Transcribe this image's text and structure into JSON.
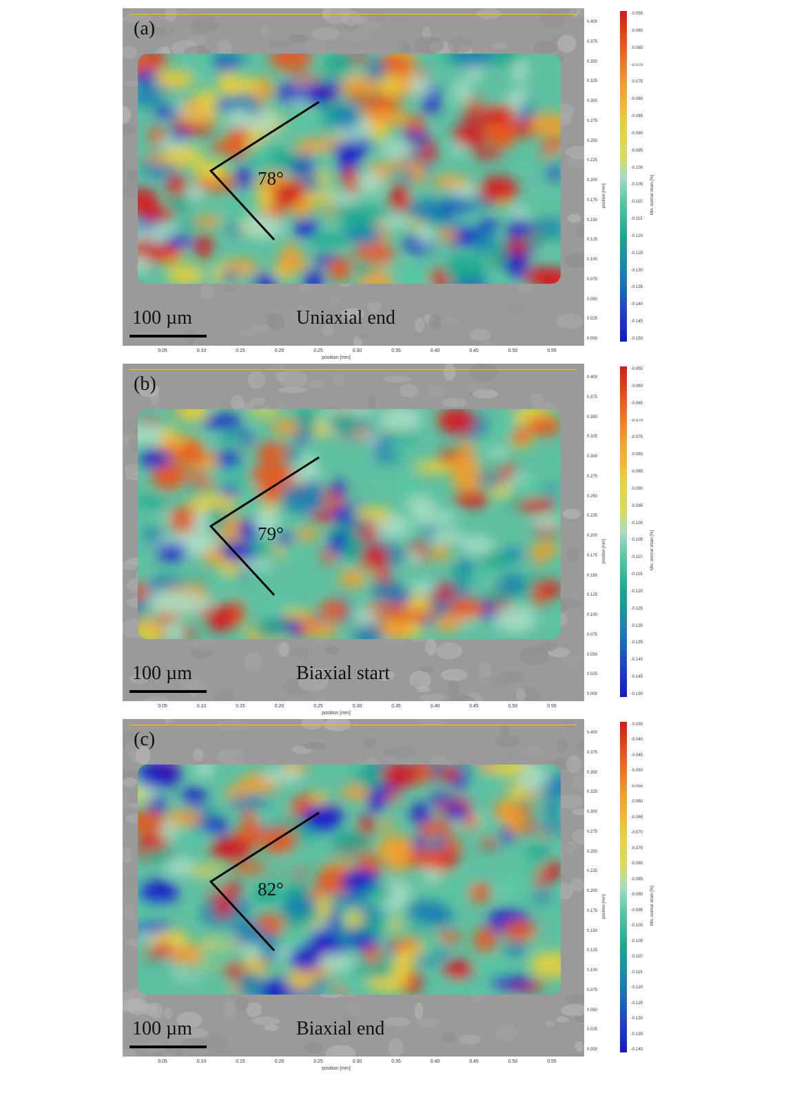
{
  "figure": {
    "panels": [
      {
        "label": "(a)",
        "stage": "Uniaxial end",
        "angle": "78°",
        "scale": "100 µm",
        "x_title": "position [mm]",
        "y_title": "position [mm]",
        "colorbar_title": "Min. normal strain [%]",
        "x_ticks": [
          "0.05",
          "0.10",
          "0.15",
          "0.20",
          "0.25",
          "0.30",
          "0.35",
          "0.40",
          "0.45",
          "0.50",
          "0.55"
        ],
        "y_ticks": [
          "0.400",
          "0.375",
          "0.350",
          "0.325",
          "0.300",
          "0.275",
          "0.250",
          "0.225",
          "0.200",
          "0.175",
          "0.150",
          "0.125",
          "0.100",
          "0.075",
          "0.050",
          "0.025",
          "0.000"
        ],
        "colorbar_ticks": [
          "-0.055",
          "-0.060",
          "-0.065",
          "-0.070",
          "-0.075",
          "-0.080",
          "-0.085",
          "-0.090",
          "-0.095",
          "-0.100",
          "-0.105",
          "-0.110",
          "-0.115",
          "-0.120",
          "-0.125",
          "-0.130",
          "-0.135",
          "-0.140",
          "-0.145",
          "-0.150"
        ]
      },
      {
        "label": "(b)",
        "stage": "Biaxial start",
        "angle": "79°",
        "scale": "100 µm",
        "x_title": "position [mm]",
        "y_title": "position [mm]",
        "colorbar_title": "Min. normal strain [%]",
        "x_ticks": [
          "0.05",
          "0.10",
          "0.15",
          "0.20",
          "0.25",
          "0.30",
          "0.35",
          "0.40",
          "0.45",
          "0.50",
          "0.55"
        ],
        "y_ticks": [
          "0.400",
          "0.375",
          "0.350",
          "0.325",
          "0.300",
          "0.275",
          "0.250",
          "0.225",
          "0.200",
          "0.175",
          "0.150",
          "0.125",
          "0.100",
          "0.075",
          "0.050",
          "0.025",
          "0.000"
        ],
        "colorbar_ticks": [
          "-0.055",
          "-0.060",
          "-0.065",
          "-0.070",
          "-0.075",
          "-0.080",
          "-0.085",
          "-0.090",
          "-0.095",
          "-0.100",
          "-0.105",
          "-0.110",
          "-0.115",
          "-0.120",
          "-0.125",
          "-0.130",
          "-0.135",
          "-0.140",
          "-0.145",
          "-0.150"
        ]
      },
      {
        "label": "(c)",
        "stage": "Biaxial end",
        "angle": "82°",
        "scale": "100 µm",
        "x_title": "position [mm]",
        "y_title": "position [mm]",
        "colorbar_title": "Min. normal strain [%]",
        "x_ticks": [
          "0.05",
          "0.10",
          "0.15",
          "0.20",
          "0.25",
          "0.30",
          "0.35",
          "0.40",
          "0.45",
          "0.50",
          "0.55"
        ],
        "y_ticks": [
          "0.400",
          "0.375",
          "0.350",
          "0.325",
          "0.300",
          "0.275",
          "0.250",
          "0.225",
          "0.200",
          "0.175",
          "0.150",
          "0.125",
          "0.100",
          "0.075",
          "0.050",
          "0.025",
          "0.000"
        ],
        "colorbar_ticks": [
          "-0.030",
          "-0.040",
          "-0.045",
          "-0.050",
          "-0.055",
          "-0.060",
          "-0.065",
          "-0.070",
          "-0.075",
          "-0.080",
          "-0.085",
          "-0.090",
          "-0.095",
          "-0.100",
          "-0.105",
          "-0.110",
          "-0.115",
          "-0.120",
          "-0.125",
          "-0.130",
          "-0.135",
          "-0.140"
        ]
      }
    ],
    "colors": {
      "high": "#d7191c",
      "mid": "#e9cf3c",
      "low_mid": "#17a98f",
      "low": "#1a16c9",
      "sem_background": "#9a9a9a"
    }
  }
}
